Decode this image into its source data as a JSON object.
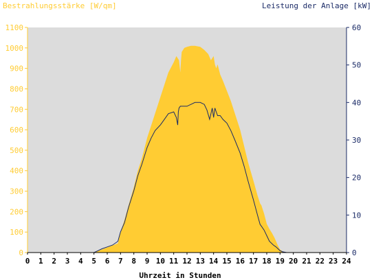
{
  "chart_data": {
    "type": "area",
    "title_left": "Bestrahlungsstärke [W/qm]",
    "title_right": "Leistung der Anlage [kW]",
    "xlabel": "Uhrzeit in Stunden",
    "x_ticks": [
      "0",
      "1",
      "2",
      "3",
      "4",
      "5",
      "6",
      "7",
      "8",
      "9",
      "10",
      "11",
      "12",
      "13",
      "14",
      "15",
      "16",
      "17",
      "18",
      "19",
      "20",
      "21",
      "22",
      "23",
      "24"
    ],
    "xlim": [
      0,
      24
    ],
    "y_left": {
      "label": "Bestrahlungsstärke [W/qm]",
      "lim": [
        0,
        1100
      ],
      "ticks": [
        "0",
        "100",
        "200",
        "300",
        "400",
        "500",
        "600",
        "700",
        "800",
        "900",
        "1000",
        "1100"
      ]
    },
    "y_right": {
      "label": "Leistung der Anlage [kW]",
      "lim": [
        0,
        60
      ],
      "ticks": [
        "0",
        "10",
        "20",
        "30",
        "40",
        "50",
        "60"
      ]
    },
    "grid": false,
    "colors": {
      "plot_background": "#dcdcdc",
      "irradiance_fill": "#ffcc33",
      "power_line": "#1a2a66",
      "left_axis_text": "#ffcc33",
      "right_axis_text": "#1a2a66"
    },
    "series": [
      {
        "axis": "left",
        "kind": "area",
        "x": [
          0,
          5.0,
          5.3,
          5.6,
          6.0,
          6.4,
          6.8,
          7.0,
          7.3,
          7.6,
          8.0,
          8.3,
          8.6,
          9.0,
          9.3,
          9.6,
          10.0,
          10.3,
          10.6,
          11.0,
          11.2,
          11.4,
          11.5,
          11.55,
          11.6,
          11.8,
          12.0,
          12.3,
          12.6,
          13.0,
          13.3,
          13.6,
          13.8,
          14.0,
          14.1,
          14.2,
          14.3,
          14.5,
          14.7,
          15.0,
          15.3,
          15.6,
          16.0,
          16.3,
          16.6,
          17.0,
          17.3,
          17.5,
          17.6,
          17.8,
          18.0,
          18.2,
          18.4,
          18.6,
          18.8,
          19.0,
          19.2,
          19.4,
          19.6,
          19.8,
          20.0,
          24
        ],
        "values": [
          0,
          0,
          8,
          15,
          25,
          35,
          45,
          100,
          160,
          230,
          320,
          400,
          460,
          560,
          620,
          680,
          760,
          820,
          880,
          930,
          960,
          940,
          880,
          940,
          980,
          1000,
          1005,
          1010,
          1010,
          1005,
          990,
          970,
          940,
          960,
          920,
          900,
          920,
          870,
          840,
          790,
          740,
          680,
          600,
          520,
          440,
          350,
          280,
          240,
          230,
          190,
          140,
          115,
          95,
          70,
          40,
          15,
          5,
          2,
          0,
          0,
          0,
          0
        ]
      },
      {
        "axis": "right",
        "kind": "line",
        "x": [
          0,
          5.0,
          5.3,
          5.6,
          6.0,
          6.4,
          6.8,
          7.0,
          7.3,
          7.6,
          8.0,
          8.3,
          8.6,
          9.0,
          9.3,
          9.6,
          10.0,
          10.3,
          10.6,
          11.0,
          11.2,
          11.3,
          11.35,
          11.4,
          11.5,
          11.8,
          12.0,
          12.3,
          12.6,
          13.0,
          13.3,
          13.5,
          13.7,
          13.8,
          13.9,
          14.0,
          14.1,
          14.2,
          14.3,
          14.5,
          14.7,
          15.0,
          15.3,
          15.6,
          16.0,
          16.3,
          16.6,
          17.0,
          17.3,
          17.5,
          17.6,
          17.8,
          18.0,
          18.2,
          18.5,
          18.7,
          19.0,
          19.2,
          19.5,
          19.8,
          20.0,
          24
        ],
        "values": [
          0,
          0,
          0.5,
          1.0,
          1.5,
          2.0,
          3.0,
          5.5,
          8.0,
          12.0,
          16.5,
          20.5,
          23.5,
          28.0,
          30.5,
          32.5,
          34.0,
          35.5,
          37.0,
          37.5,
          36.0,
          34.0,
          37.5,
          38.5,
          39.0,
          39.0,
          39.0,
          39.5,
          40.0,
          40.0,
          39.5,
          38.0,
          35.5,
          37.0,
          38.5,
          36.0,
          38.5,
          37.5,
          36.5,
          36.5,
          35.5,
          34.5,
          32.5,
          30.0,
          26.5,
          23.0,
          19.0,
          14.0,
          10.0,
          7.5,
          7.0,
          6.0,
          4.5,
          3.0,
          2.0,
          1.5,
          0.5,
          0.2,
          0,
          0,
          0,
          0
        ]
      }
    ]
  }
}
